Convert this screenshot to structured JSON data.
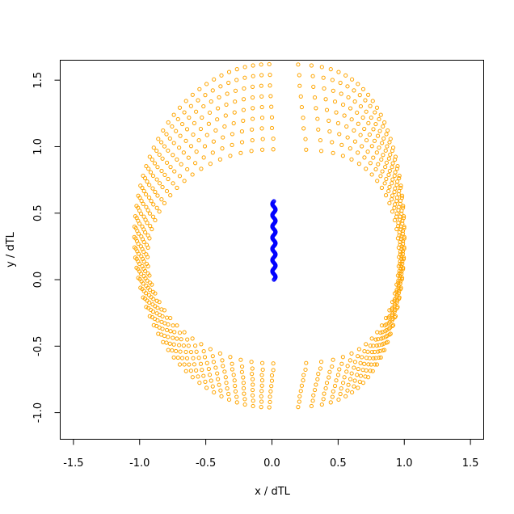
{
  "chart_data": {
    "type": "scatter",
    "title": "",
    "xlabel": "x / dTL",
    "ylabel": "y / dTL",
    "xlim": [
      -1.6,
      1.6
    ],
    "ylim": [
      -1.2,
      1.65
    ],
    "x_ticks": [
      -1.5,
      -1.0,
      -0.5,
      0.0,
      0.5,
      1.0,
      1.5
    ],
    "x_tick_labels": [
      "-1.5",
      "-1.0",
      "-0.5",
      "0.0",
      "0.5",
      "1.0",
      "1.5"
    ],
    "y_ticks": [
      -1.0,
      -0.5,
      0.0,
      0.5,
      1.0,
      1.5
    ],
    "y_tick_labels": [
      "-1.0",
      "-0.5",
      "0.0",
      "0.5",
      "1.0",
      "1.5"
    ],
    "grid": false,
    "legend": "none",
    "colors": {
      "rings": "#FFA500",
      "core": "#0000FF"
    },
    "series": [
      {
        "shape": "open-circle",
        "color": "#FFA500",
        "rings": [
          {
            "x_left": -1.04,
            "x_right": 1.0,
            "y_top": 1.62,
            "y_bottom": -0.96,
            "y_mid": 0.32,
            "points": 104
          },
          {
            "x_left": -1.03,
            "x_right": 1.0,
            "y_top": 1.54,
            "y_bottom": -0.92,
            "y_mid": 0.31,
            "points": 100
          },
          {
            "x_left": -1.02,
            "x_right": 0.99,
            "y_top": 1.46,
            "y_bottom": -0.88,
            "y_mid": 0.29,
            "points": 96
          },
          {
            "x_left": -1.01,
            "x_right": 0.99,
            "y_top": 1.38,
            "y_bottom": -0.84,
            "y_mid": 0.27,
            "points": 92
          },
          {
            "x_left": -0.99,
            "x_right": 0.98,
            "y_top": 1.3,
            "y_bottom": -0.8,
            "y_mid": 0.25,
            "points": 88
          },
          {
            "x_left": -0.98,
            "x_right": 0.98,
            "y_top": 1.22,
            "y_bottom": -0.76,
            "y_mid": 0.23,
            "points": 84
          },
          {
            "x_left": -0.97,
            "x_right": 0.97,
            "y_top": 1.14,
            "y_bottom": -0.72,
            "y_mid": 0.21,
            "points": 80
          },
          {
            "x_left": -0.95,
            "x_right": 0.97,
            "y_top": 1.06,
            "y_bottom": -0.68,
            "y_mid": 0.19,
            "points": 76
          },
          {
            "x_left": -0.94,
            "x_right": 0.96,
            "y_top": 0.98,
            "y_bottom": -0.63,
            "y_mid": 0.17,
            "points": 72
          }
        ]
      },
      {
        "shape": "open-circle",
        "color": "#0000FF",
        "x_center": 0.015,
        "x_amplitude": 0.012,
        "y_range": [
          0.0,
          0.59
        ],
        "oscillations": 7,
        "points": 110
      }
    ]
  }
}
